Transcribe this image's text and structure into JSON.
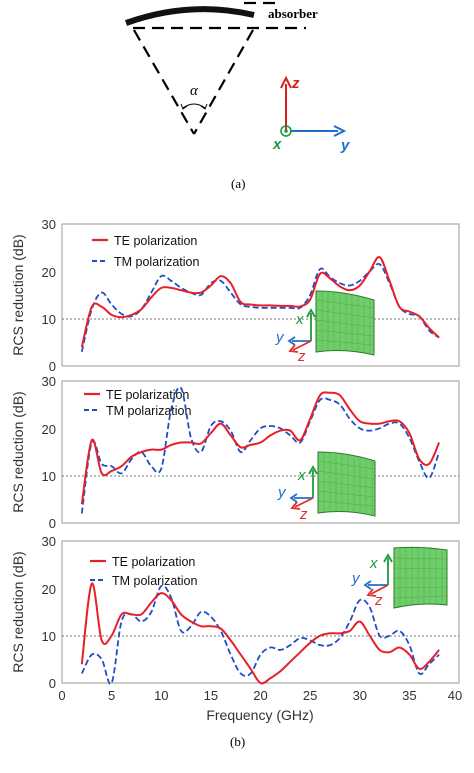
{
  "figure_a": {
    "absorber_label": "absorber",
    "angle_label": "α",
    "axes": {
      "z": "z",
      "x": "x",
      "y": "y"
    },
    "caption": "(a)"
  },
  "figure_b": {
    "caption": "(b)",
    "colors": {
      "te": "#e8202a",
      "tm": "#1f4fc4",
      "x_axis": "#1a9c3a",
      "y_axis": "#1f6fc9",
      "z_axis": "#e03030",
      "panel_green": "#6fce6a"
    }
  },
  "chart_data": [
    {
      "type": "line",
      "title": "",
      "xlabel": "",
      "ylabel": "RCS reduction (dB)",
      "xlim": [
        0,
        40
      ],
      "ylim": [
        0,
        30
      ],
      "yticks": [
        0,
        10,
        20,
        30
      ],
      "legend": "top-left",
      "grid": "dotted line at y=10",
      "inset_axes": {
        "x": "x",
        "y": "y",
        "z": "z"
      },
      "series": [
        {
          "name": "TE polarization",
          "x": [
            2,
            3,
            4,
            5,
            6,
            7,
            8,
            9,
            10,
            11,
            12,
            13,
            14,
            15,
            16,
            17,
            18,
            19,
            20,
            21,
            22,
            23,
            24,
            25,
            26,
            27,
            28,
            29,
            30,
            31,
            32,
            33,
            34,
            35,
            36,
            37,
            38
          ],
          "y": [
            4,
            12.5,
            12.5,
            10.8,
            10.3,
            10.8,
            12,
            14.5,
            16.5,
            16.5,
            16,
            15.5,
            15.5,
            17,
            19,
            17.5,
            13.5,
            13,
            12.8,
            12.8,
            12.7,
            12.7,
            12.6,
            14,
            19.5,
            18.5,
            16.8,
            16,
            17,
            20,
            23,
            18,
            12.5,
            11.5,
            10.5,
            8,
            6
          ]
        },
        {
          "name": "TM polarization",
          "x": [
            2,
            3,
            4,
            5,
            6,
            7,
            8,
            9,
            10,
            11,
            12,
            13,
            14,
            15,
            16,
            17,
            18,
            19,
            20,
            21,
            22,
            23,
            24,
            25,
            26,
            27,
            28,
            29,
            30,
            31,
            32,
            33,
            34,
            35,
            36,
            37,
            38
          ],
          "y": [
            3,
            12,
            15.5,
            13,
            11,
            10.5,
            12,
            15.5,
            19,
            18,
            16.5,
            15.5,
            15,
            17.5,
            18,
            15.5,
            13,
            12.5,
            12.3,
            12.3,
            12.3,
            12.3,
            12.3,
            15,
            20.5,
            18.8,
            17.5,
            17,
            18,
            20,
            21.5,
            17.5,
            12.5,
            11,
            10.5,
            7.5,
            6
          ]
        }
      ]
    },
    {
      "type": "line",
      "title": "",
      "xlabel": "",
      "ylabel": "RCS reduction (dB)",
      "xlim": [
        0,
        40
      ],
      "ylim": [
        0,
        30
      ],
      "yticks": [
        0,
        10,
        20,
        30
      ],
      "legend": "top-left",
      "grid": "dotted line at y=10",
      "inset_axes": {
        "x": "x",
        "y": "y",
        "z": "z"
      },
      "series": [
        {
          "name": "TE polarization",
          "x": [
            2,
            3,
            4,
            5,
            6,
            7,
            8,
            9,
            10,
            11,
            12,
            13,
            14,
            15,
            16,
            17,
            18,
            19,
            20,
            21,
            22,
            23,
            24,
            25,
            26,
            27,
            28,
            29,
            30,
            31,
            32,
            33,
            34,
            35,
            36,
            37,
            38
          ],
          "y": [
            4,
            17.5,
            10.5,
            11,
            12,
            14,
            15,
            15.5,
            15.5,
            16.5,
            17,
            17,
            16.8,
            19,
            21,
            18.5,
            16,
            16.5,
            17,
            18.5,
            19.5,
            19.5,
            17.5,
            22,
            27,
            27.5,
            27,
            24,
            21.5,
            21,
            21,
            21.5,
            21.5,
            19,
            13.5,
            12.5,
            17
          ]
        },
        {
          "name": "TM polarization",
          "x": [
            2,
            3,
            4,
            5,
            6,
            7,
            8,
            9,
            10,
            11,
            12,
            13,
            14,
            15,
            16,
            17,
            18,
            19,
            20,
            21,
            22,
            23,
            24,
            25,
            26,
            27,
            28,
            29,
            30,
            31,
            32,
            33,
            34,
            35,
            36,
            37,
            38
          ],
          "y": [
            2,
            17,
            12.5,
            12,
            10.5,
            13.5,
            15,
            12,
            11.5,
            24,
            28.5,
            18,
            15,
            20.5,
            21.5,
            19.5,
            15,
            17.5,
            20,
            20.5,
            20,
            18.5,
            17,
            21.5,
            26,
            26,
            25,
            22,
            20,
            19.5,
            20,
            21,
            21,
            18,
            13,
            9.5,
            15
          ]
        }
      ]
    },
    {
      "type": "line",
      "title": "",
      "xlabel": "Frequency (GHz)",
      "ylabel": "RCS reduction (dB)",
      "xlim": [
        0,
        40
      ],
      "ylim": [
        0,
        30
      ],
      "xticks": [
        0,
        5,
        10,
        15,
        20,
        25,
        30,
        35,
        40
      ],
      "yticks": [
        0,
        10,
        20,
        30
      ],
      "legend": "top-left",
      "grid": "dotted line at y=10",
      "inset_axes": {
        "x": "x",
        "y": "y",
        "z": "z"
      },
      "series": [
        {
          "name": "TE polarization",
          "x": [
            2,
            3,
            4,
            5,
            6,
            7,
            8,
            9,
            10,
            11,
            12,
            13,
            14,
            15,
            16,
            17,
            18,
            19,
            20,
            21,
            22,
            23,
            24,
            25,
            26,
            27,
            28,
            29,
            30,
            31,
            32,
            33,
            34,
            35,
            36,
            37,
            38
          ],
          "y": [
            4,
            21,
            9,
            10,
            14.5,
            14.5,
            14.5,
            17,
            19,
            17.5,
            14.5,
            13,
            12,
            12,
            11.5,
            9,
            6,
            3,
            0,
            1,
            2.5,
            4.5,
            6.5,
            8.5,
            10,
            10.5,
            10.5,
            11,
            13,
            10,
            7,
            6.5,
            7.5,
            6,
            3,
            4.5,
            7
          ]
        },
        {
          "name": "TM polarization",
          "x": [
            2,
            3,
            4,
            5,
            6,
            7,
            8,
            9,
            10,
            11,
            12,
            13,
            14,
            15,
            16,
            17,
            18,
            19,
            20,
            21,
            22,
            23,
            24,
            25,
            26,
            27,
            28,
            29,
            30,
            31,
            32,
            33,
            34,
            35,
            36,
            37,
            38
          ],
          "y": [
            2,
            6,
            5,
            0,
            13,
            14.5,
            13,
            15,
            20.5,
            18,
            11,
            12,
            15,
            14,
            11,
            6,
            2,
            2,
            6,
            7.5,
            7,
            8,
            9.5,
            9,
            8,
            8,
            9.5,
            13,
            17.5,
            16,
            10,
            10,
            11,
            8,
            2,
            4,
            6
          ]
        }
      ]
    }
  ]
}
